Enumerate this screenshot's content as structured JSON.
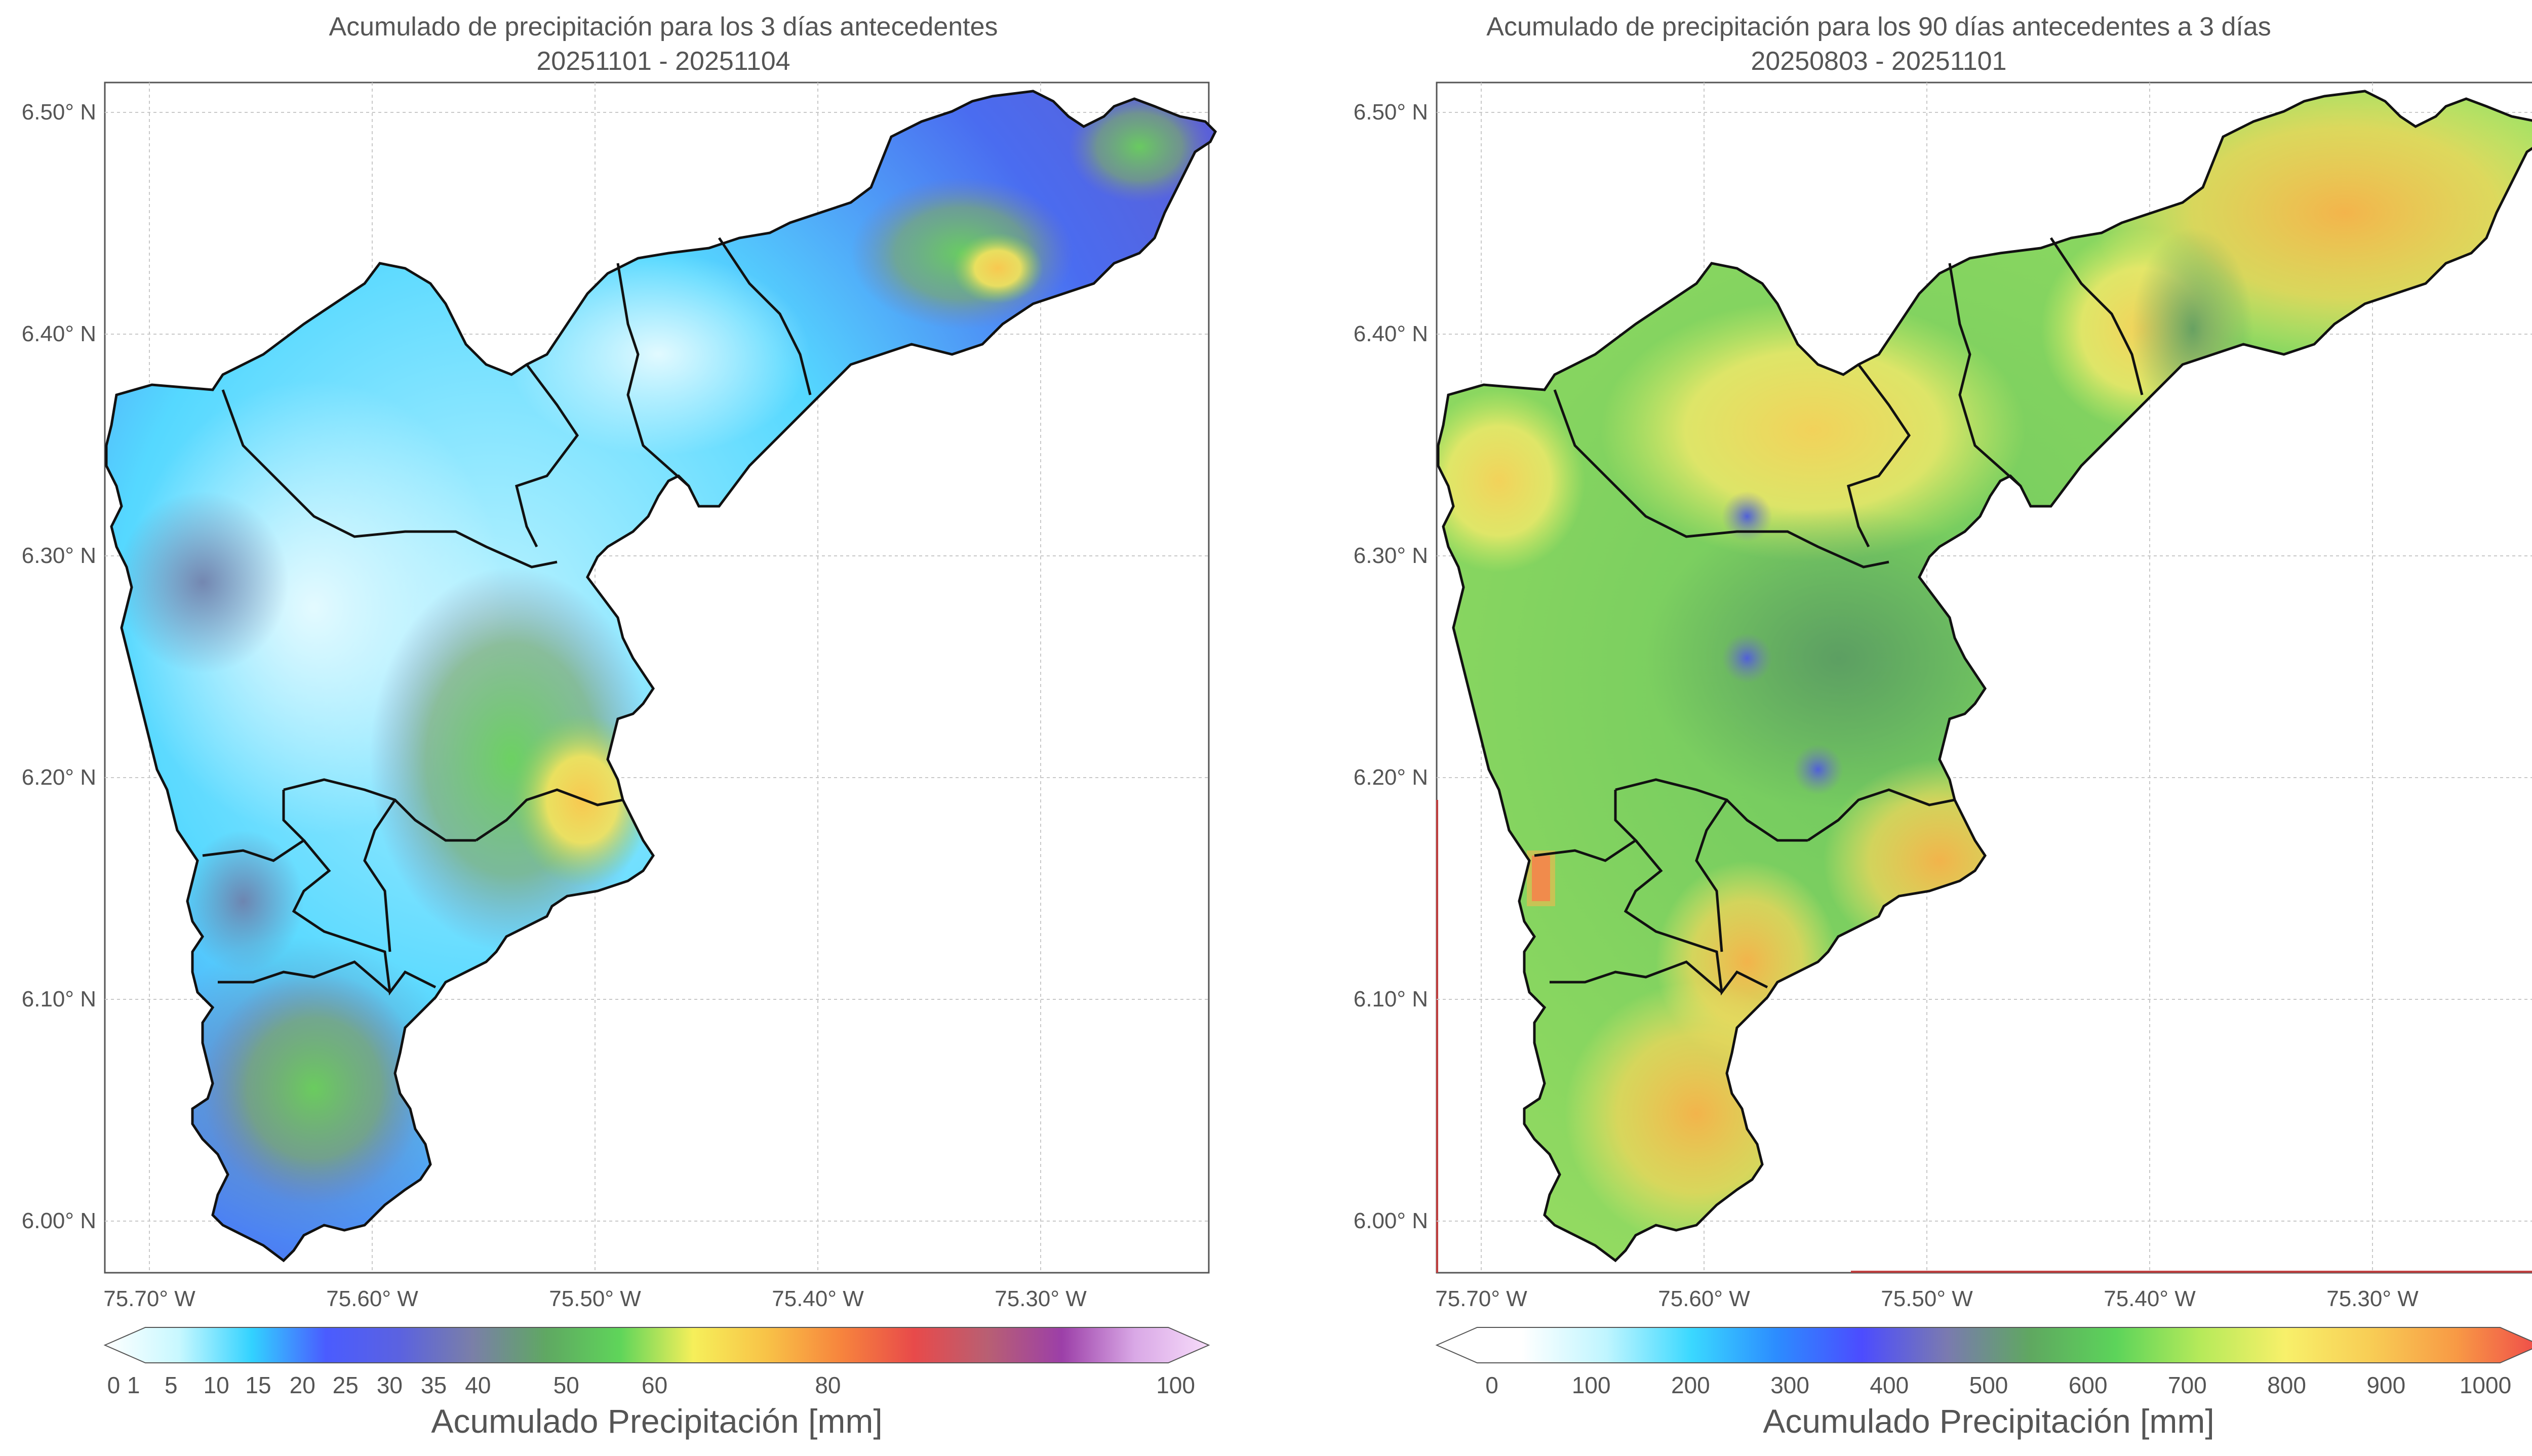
{
  "panels": [
    {
      "title_line1": "Acumulado de precipitación para los 3 días antecedentes",
      "title_line2": "20251101 - 20251104",
      "colorbar_ticks": [
        "0",
        "1",
        "5",
        "10",
        "15",
        "20",
        "25",
        "30",
        "35",
        "40",
        "50",
        "60",
        "80",
        "100"
      ],
      "colorbar_label": "Acumulado Precipitación [mm]",
      "colorbar_colors": [
        "#ffffff",
        "#c8f8ff",
        "#32d2ff",
        "#4a5cff",
        "#5b62e0",
        "#7a7fa8",
        "#5fa862",
        "#5fd55a",
        "#f6ef5a",
        "#f8c247",
        "#f7843d",
        "#e84a4a",
        "#b85f73",
        "#9c3fa8",
        "#d9a8e6",
        "#f7dcfa"
      ]
    },
    {
      "title_line1": "Acumulado de precipitación para los 90 días antecedentes a 3 días",
      "title_line2": "20250803 - 20251101",
      "colorbar_ticks": [
        "0",
        "100",
        "200",
        "300",
        "400",
        "500",
        "600",
        "700",
        "800",
        "900",
        "1000"
      ],
      "colorbar_label": "Acumulado Precipitación [mm]",
      "colorbar_colors": [
        "#ffffff",
        "#ffffff",
        "#bff5ff",
        "#3ad8ff",
        "#2c8cff",
        "#4c4cff",
        "#7a7ab0",
        "#5fa860",
        "#5cd45a",
        "#b6ea5a",
        "#f8f06a",
        "#f8cd55",
        "#f89a45",
        "#ef4a4a"
      ]
    }
  ],
  "axes": {
    "lat_ticks": [
      "6.50° N",
      "6.40° N",
      "6.30° N",
      "6.20° N",
      "6.10° N",
      "6.00° N"
    ],
    "lon_ticks": [
      "75.70° W",
      "75.60° W",
      "75.50° W",
      "75.40° W",
      "75.30° W"
    ]
  },
  "colors": {
    "frame": "#555555",
    "boundary": "#111111",
    "grid": "#c8c8c8",
    "edge_red": "#c04040"
  }
}
